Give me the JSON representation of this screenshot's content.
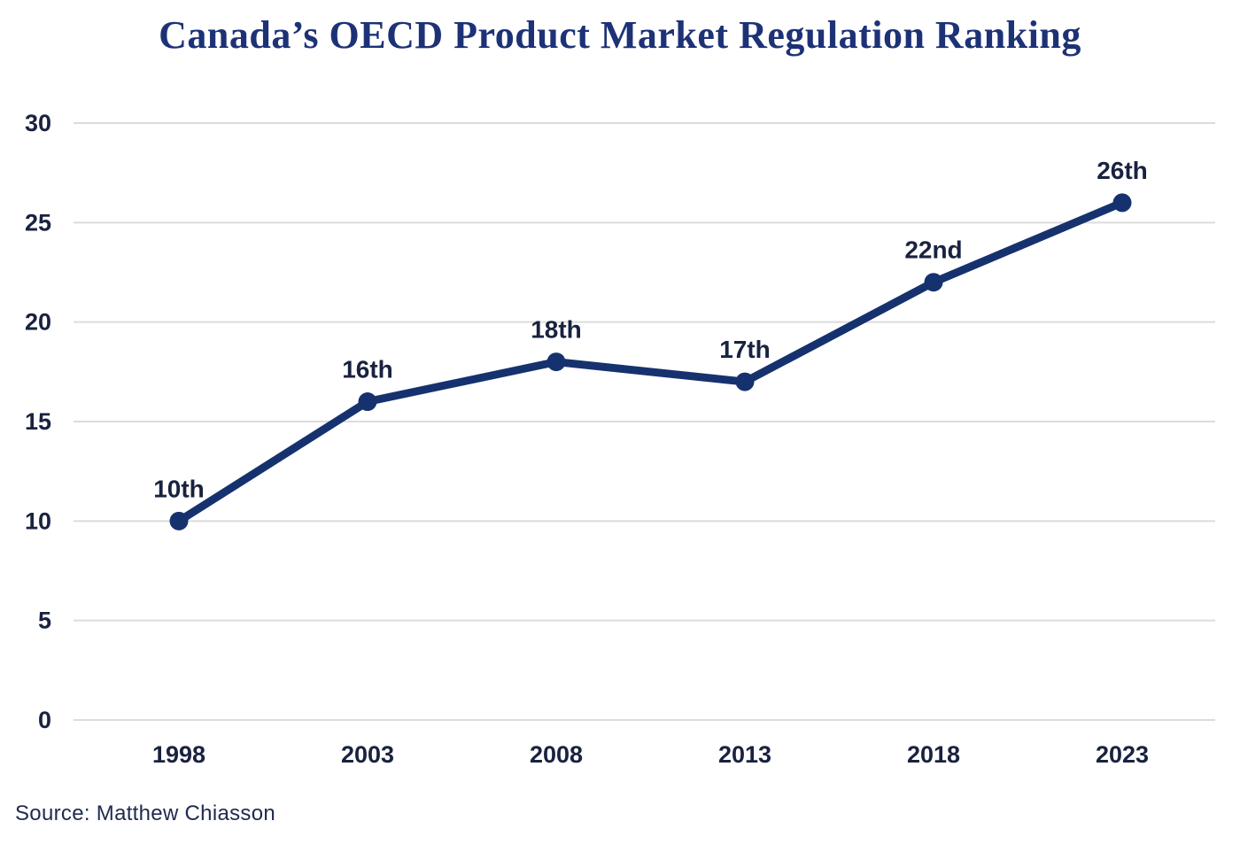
{
  "page": {
    "title": "Canada’s OECD Product Market Regulation Ranking",
    "source_note": "Source: Matthew Chiasson"
  },
  "chart_data": {
    "type": "line",
    "title": "Canada’s OECD Product Market Regulation Ranking",
    "categories": [
      "1998",
      "2003",
      "2008",
      "2013",
      "2018",
      "2023"
    ],
    "values": [
      10,
      16,
      18,
      17,
      22,
      26
    ],
    "point_labels": [
      "10th",
      "16th",
      "18th",
      "17th",
      "22nd",
      "26th"
    ],
    "xlabel": "",
    "ylabel": "",
    "ylim": [
      0,
      30
    ],
    "yticks": [
      0,
      5,
      10,
      15,
      20,
      25,
      30
    ],
    "grid": true,
    "legend": false,
    "colors": {
      "line": "#16326e",
      "marker": "#16326e",
      "title": "#1d3276",
      "tick_labels": "#19223f",
      "data_labels": "#19223f",
      "gridlines": "#dcdcdc",
      "source_text": "#202c4e",
      "background": "#ffffff"
    }
  }
}
